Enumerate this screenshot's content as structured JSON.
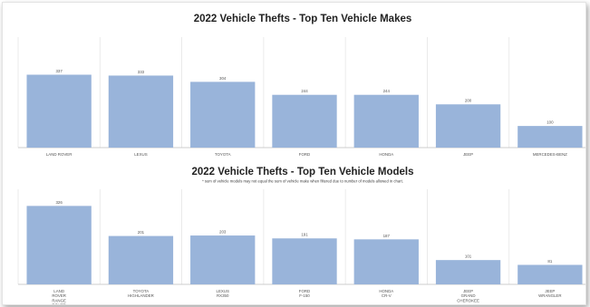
{
  "chart_data": [
    {
      "type": "bar",
      "title": "2022 Vehicle Thefts - Top Ten Vehicle Makes",
      "note": "",
      "categories": [
        "LAND ROVER",
        "LEXUS",
        "TOYOTA",
        "FORD",
        "HONDA",
        "JEEP",
        "MERCEDES-BENZ"
      ],
      "values": [
        337,
        333,
        304,
        244,
        244,
        200,
        100
      ],
      "value_labels": [
        "337",
        "333",
        "304",
        "244",
        "244",
        "200",
        "100"
      ],
      "ylim": [
        0,
        360
      ],
      "bar_color": "#99b4da",
      "grid": "vertical"
    },
    {
      "type": "bar",
      "title": "2022 Vehicle Thefts - Top Ten Vehicle Models",
      "note": "* sum of vehicle models may not equal the sum of vehicle make when filtered due to number of models allowed in chart.",
      "categories": [
        [
          "LAND",
          "ROVER",
          "RANGE",
          "ROVER"
        ],
        [
          "TOYOTA",
          "HIGHLANDER"
        ],
        [
          "LEXUS",
          "RX350"
        ],
        [
          "FORD",
          "F-150"
        ],
        [
          "HONDA",
          "CR-V"
        ],
        [
          "JEEP",
          "GRAND",
          "CHEROKEE"
        ],
        [
          "JEEP",
          "WRANGLER"
        ]
      ],
      "values": [
        326,
        201,
        203,
        191,
        187,
        101,
        81
      ],
      "value_labels": [
        "326",
        "201",
        "203",
        "191",
        "187",
        "101",
        "81"
      ],
      "ylim": [
        0,
        350
      ],
      "bar_color": "#99b4da",
      "grid": "vertical"
    }
  ]
}
